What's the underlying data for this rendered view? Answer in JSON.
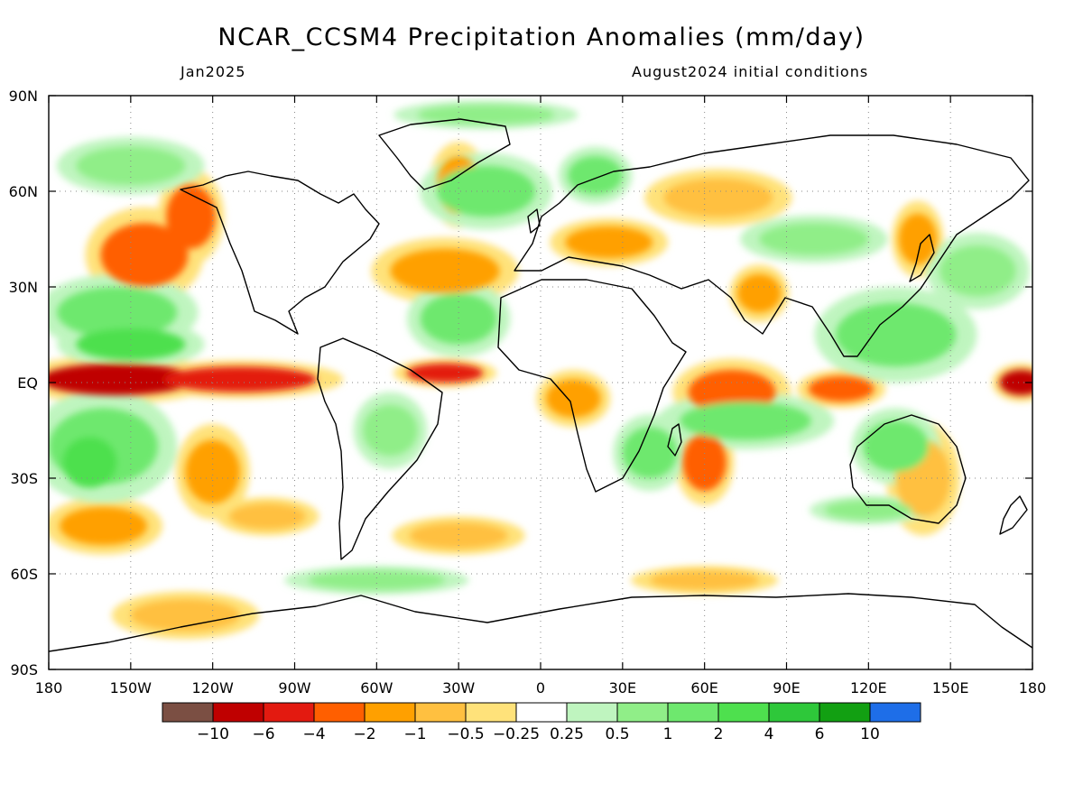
{
  "header": {
    "title": "NCAR_CCSM4 Precipitation Anomalies (mm/day)",
    "valid_month": "Jan2025",
    "init": "August2024 initial conditions"
  },
  "map": {
    "projection": "cylindrical equidistant",
    "lon_range": [
      -180,
      180
    ],
    "lat_range": [
      -90,
      90
    ],
    "grid": "dotted, every 30 degrees",
    "lat_labels": [
      {
        "value": 90,
        "label": "90N"
      },
      {
        "value": 60,
        "label": "60N"
      },
      {
        "value": 30,
        "label": "30N"
      },
      {
        "value": 0,
        "label": "EQ"
      },
      {
        "value": -30,
        "label": "30S"
      },
      {
        "value": -60,
        "label": "60S"
      },
      {
        "value": -90,
        "label": "90S"
      }
    ],
    "lon_labels": [
      {
        "value": -180,
        "label": "180"
      },
      {
        "value": -150,
        "label": "150W"
      },
      {
        "value": -120,
        "label": "120W"
      },
      {
        "value": -90,
        "label": "90W"
      },
      {
        "value": -60,
        "label": "60W"
      },
      {
        "value": -30,
        "label": "30W"
      },
      {
        "value": 0,
        "label": "0"
      },
      {
        "value": 30,
        "label": "30E"
      },
      {
        "value": 60,
        "label": "60E"
      },
      {
        "value": 90,
        "label": "90E"
      },
      {
        "value": 120,
        "label": "120E"
      },
      {
        "value": 150,
        "label": "150E"
      },
      {
        "value": 180,
        "label": "180"
      }
    ]
  },
  "colorbar": {
    "colors": [
      "#7b4f43",
      "#bf0000",
      "#e31a10",
      "#ff5f00",
      "#ffa000",
      "#ffc040",
      "#ffe27a",
      "#ffffff",
      "#bff5bf",
      "#90ee88",
      "#6ee86e",
      "#4ee04e",
      "#2ec83a",
      "#12a012",
      "#1e6ee8"
    ],
    "labels": [
      "−10",
      "−6",
      "−4",
      "−2",
      "−1",
      "−0.5",
      "−0.25",
      "0.25",
      "0.5",
      "1",
      "2",
      "4",
      "6",
      "10"
    ]
  },
  "anomalies": [
    {
      "lon": -155,
      "lat": 1,
      "rx": 28,
      "ry": 5,
      "level": "-6"
    },
    {
      "lon": -110,
      "lat": 1,
      "rx": 28,
      "ry": 4,
      "level": "-4"
    },
    {
      "lon": -35,
      "lat": 3,
      "rx": 14,
      "ry": 3,
      "level": "-4"
    },
    {
      "lon": 176,
      "lat": 0,
      "rx": 8,
      "ry": 4,
      "level": "-6"
    },
    {
      "lon": -145,
      "lat": 40,
      "rx": 16,
      "ry": 10,
      "level": "-2"
    },
    {
      "lon": -128,
      "lat": 52,
      "rx": 9,
      "ry": 10,
      "level": "-2"
    },
    {
      "lon": 70,
      "lat": -3,
      "rx": 16,
      "ry": 7,
      "level": "-2"
    },
    {
      "lon": 60,
      "lat": -25,
      "rx": 8,
      "ry": 9,
      "level": "-2"
    },
    {
      "lon": 110,
      "lat": -2,
      "rx": 12,
      "ry": 4,
      "level": "-2"
    },
    {
      "lon": 12,
      "lat": -5,
      "rx": 10,
      "ry": 6,
      "level": "-1"
    },
    {
      "lon": 25,
      "lat": 44,
      "rx": 16,
      "ry": 5,
      "level": "-1"
    },
    {
      "lon": 80,
      "lat": 28,
      "rx": 8,
      "ry": 6,
      "level": "-1"
    },
    {
      "lon": 138,
      "lat": 45,
      "rx": 7,
      "ry": 8,
      "level": "-1"
    },
    {
      "lon": -35,
      "lat": 35,
      "rx": 20,
      "ry": 7,
      "level": "-1"
    },
    {
      "lon": -120,
      "lat": -28,
      "rx": 10,
      "ry": 10,
      "level": "-1"
    },
    {
      "lon": -160,
      "lat": -45,
      "rx": 16,
      "ry": 6,
      "level": "-1"
    },
    {
      "lon": 65,
      "lat": 58,
      "rx": 20,
      "ry": 6,
      "level": "-0.5"
    },
    {
      "lon": -30,
      "lat": 62,
      "rx": 8,
      "ry": 9,
      "level": "-1"
    },
    {
      "lon": 140,
      "lat": -30,
      "rx": 10,
      "ry": 12,
      "level": "-0.5"
    },
    {
      "lon": -100,
      "lat": -42,
      "rx": 14,
      "ry": 4,
      "level": "-0.5"
    },
    {
      "lon": -30,
      "lat": -48,
      "rx": 18,
      "ry": 4,
      "level": "-0.5"
    },
    {
      "lon": -130,
      "lat": -73,
      "rx": 20,
      "ry": 5,
      "level": "-0.5"
    },
    {
      "lon": 60,
      "lat": -62,
      "rx": 20,
      "ry": 3,
      "level": "-0.5"
    },
    {
      "lon": -155,
      "lat": 22,
      "rx": 22,
      "ry": 8,
      "level": "1"
    },
    {
      "lon": -150,
      "lat": 12,
      "rx": 20,
      "ry": 5,
      "level": "2"
    },
    {
      "lon": -160,
      "lat": -20,
      "rx": 20,
      "ry": 12,
      "level": "1"
    },
    {
      "lon": -165,
      "lat": -25,
      "rx": 10,
      "ry": 8,
      "level": "2"
    },
    {
      "lon": -30,
      "lat": 20,
      "rx": 14,
      "ry": 8,
      "level": "1"
    },
    {
      "lon": -20,
      "lat": 60,
      "rx": 18,
      "ry": 8,
      "level": "1"
    },
    {
      "lon": 75,
      "lat": -12,
      "rx": 24,
      "ry": 6,
      "level": "1"
    },
    {
      "lon": 130,
      "lat": -20,
      "rx": 12,
      "ry": 8,
      "level": "1"
    },
    {
      "lon": 40,
      "lat": -22,
      "rx": 10,
      "ry": 8,
      "level": "1"
    },
    {
      "lon": 130,
      "lat": 15,
      "rx": 22,
      "ry": 10,
      "level": "1"
    },
    {
      "lon": 160,
      "lat": 35,
      "rx": 14,
      "ry": 8,
      "level": "0.5"
    },
    {
      "lon": 100,
      "lat": 45,
      "rx": 20,
      "ry": 5,
      "level": "0.5"
    },
    {
      "lon": -55,
      "lat": -15,
      "rx": 10,
      "ry": 8,
      "level": "0.5"
    },
    {
      "lon": 20,
      "lat": 65,
      "rx": 10,
      "ry": 6,
      "level": "1"
    },
    {
      "lon": -150,
      "lat": 68,
      "rx": 20,
      "ry": 6,
      "level": "0.5"
    },
    {
      "lon": 120,
      "lat": -40,
      "rx": 16,
      "ry": 3,
      "level": "0.5"
    },
    {
      "lon": -60,
      "lat": -62,
      "rx": 25,
      "ry": 3,
      "level": "0.5"
    },
    {
      "lon": -20,
      "lat": 84,
      "rx": 25,
      "ry": 3,
      "level": "0.5"
    }
  ]
}
